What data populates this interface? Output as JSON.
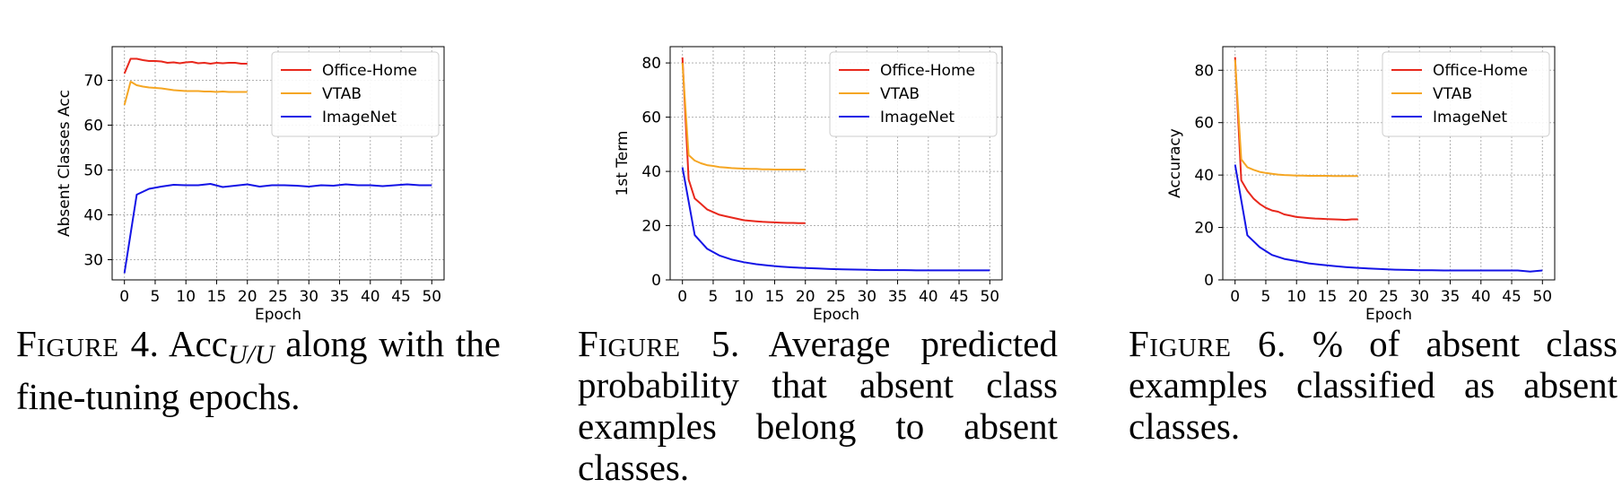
{
  "chart_data": [
    {
      "type": "line",
      "ylabel": "Absent Classes Acc",
      "xlabel": "Epoch",
      "xlim": [
        -2,
        52
      ],
      "ylim": [
        25.5,
        77.5
      ],
      "xticks": [
        "0",
        "5",
        "10",
        "15",
        "20",
        "25",
        "30",
        "35",
        "40",
        "45",
        "50"
      ],
      "yticks": [
        "30",
        "40",
        "50",
        "60",
        "70"
      ],
      "grid": true,
      "legend_position": "top-right",
      "series": [
        {
          "name": "Office-Home",
          "color": "#e8281c",
          "x": [
            0,
            1,
            2,
            3,
            4,
            5,
            6,
            7,
            8,
            9,
            10,
            11,
            12,
            13,
            14,
            15,
            16,
            17,
            18,
            19,
            20
          ],
          "y": [
            71.5,
            74.8,
            74.8,
            74.5,
            74.3,
            74.3,
            74.2,
            73.9,
            74.0,
            73.8,
            74.0,
            74.1,
            73.8,
            73.9,
            73.7,
            73.9,
            73.8,
            73.9,
            73.9,
            73.7,
            73.7
          ]
        },
        {
          "name": "VTAB",
          "color": "#f5a623",
          "x": [
            0,
            1,
            2,
            3,
            4,
            5,
            6,
            7,
            8,
            9,
            10,
            11,
            12,
            13,
            14,
            15,
            16,
            17,
            18,
            19,
            20
          ],
          "y": [
            64.5,
            69.7,
            68.9,
            68.6,
            68.4,
            68.3,
            68.2,
            68.0,
            67.8,
            67.7,
            67.6,
            67.6,
            67.6,
            67.5,
            67.5,
            67.4,
            67.5,
            67.4,
            67.4,
            67.4,
            67.4
          ]
        },
        {
          "name": "ImageNet",
          "color": "#1414e6",
          "x": [
            0,
            2,
            4,
            6,
            8,
            10,
            12,
            14,
            16,
            18,
            20,
            22,
            24,
            26,
            28,
            30,
            32,
            34,
            36,
            38,
            40,
            42,
            44,
            46,
            48,
            50
          ],
          "y": [
            27.0,
            44.5,
            45.8,
            46.3,
            46.7,
            46.6,
            46.6,
            46.9,
            46.2,
            46.5,
            46.8,
            46.3,
            46.6,
            46.6,
            46.5,
            46.3,
            46.6,
            46.5,
            46.8,
            46.6,
            46.6,
            46.4,
            46.6,
            46.8,
            46.6,
            46.6
          ]
        }
      ]
    },
    {
      "type": "line",
      "ylabel": "1st Term",
      "xlabel": "Epoch",
      "xlim": [
        -2,
        52
      ],
      "ylim": [
        0,
        86
      ],
      "xticks": [
        "0",
        "5",
        "10",
        "15",
        "20",
        "25",
        "30",
        "35",
        "40",
        "45",
        "50"
      ],
      "yticks": [
        "0",
        "20",
        "40",
        "60",
        "80"
      ],
      "grid": true,
      "legend_position": "top-right",
      "series": [
        {
          "name": "Office-Home",
          "color": "#e8281c",
          "x": [
            0,
            1,
            2,
            3,
            4,
            5,
            6,
            7,
            8,
            9,
            10,
            11,
            12,
            13,
            14,
            15,
            16,
            17,
            18,
            19,
            20
          ],
          "y": [
            82,
            37,
            30,
            28,
            26,
            25,
            24,
            23.5,
            23,
            22.5,
            22,
            21.8,
            21.6,
            21.4,
            21.3,
            21.2,
            21.1,
            21.0,
            21.0,
            20.9,
            20.9
          ]
        },
        {
          "name": "VTAB",
          "color": "#f5a623",
          "x": [
            0,
            1,
            2,
            3,
            4,
            5,
            6,
            7,
            8,
            9,
            10,
            11,
            12,
            13,
            14,
            15,
            16,
            17,
            18,
            19,
            20
          ],
          "y": [
            80,
            46,
            44,
            43,
            42.3,
            42,
            41.6,
            41.4,
            41.2,
            41.1,
            41.0,
            40.9,
            40.9,
            40.8,
            40.8,
            40.7,
            40.7,
            40.7,
            40.7,
            40.7,
            40.7
          ]
        },
        {
          "name": "ImageNet",
          "color": "#1414e6",
          "x": [
            0,
            2,
            4,
            6,
            8,
            10,
            12,
            14,
            16,
            18,
            20,
            22,
            24,
            26,
            28,
            30,
            32,
            34,
            36,
            38,
            40,
            42,
            44,
            46,
            48,
            50
          ],
          "y": [
            41.5,
            16.5,
            11.5,
            9.0,
            7.5,
            6.5,
            5.8,
            5.3,
            4.9,
            4.6,
            4.4,
            4.2,
            4.0,
            3.9,
            3.8,
            3.7,
            3.6,
            3.6,
            3.6,
            3.5,
            3.5,
            3.5,
            3.5,
            3.5,
            3.5,
            3.5
          ]
        }
      ]
    },
    {
      "type": "line",
      "ylabel": "Accuracy",
      "xlabel": "Epoch",
      "xlim": [
        -2,
        52
      ],
      "ylim": [
        0,
        89
      ],
      "xticks": [
        "0",
        "5",
        "10",
        "15",
        "20",
        "25",
        "30",
        "35",
        "40",
        "45",
        "50"
      ],
      "yticks": [
        "0",
        "20",
        "40",
        "60",
        "80"
      ],
      "grid": true,
      "legend_position": "top-right",
      "series": [
        {
          "name": "Office-Home",
          "color": "#e8281c",
          "x": [
            0,
            1,
            2,
            3,
            4,
            5,
            6,
            7,
            8,
            9,
            10,
            11,
            12,
            13,
            14,
            15,
            16,
            17,
            18,
            19,
            20
          ],
          "y": [
            85,
            38,
            34,
            31,
            29,
            27.5,
            26.5,
            26,
            25,
            24.5,
            24,
            23.8,
            23.6,
            23.4,
            23.3,
            23.2,
            23.1,
            23.0,
            22.9,
            23.1,
            23.1
          ]
        },
        {
          "name": "VTAB",
          "color": "#f5a623",
          "x": [
            0,
            1,
            2,
            3,
            4,
            5,
            6,
            7,
            8,
            9,
            10,
            11,
            12,
            13,
            14,
            15,
            16,
            17,
            18,
            19,
            20
          ],
          "y": [
            84,
            46,
            43,
            42,
            41.2,
            40.8,
            40.5,
            40.2,
            40.0,
            39.9,
            39.8,
            39.8,
            39.7,
            39.7,
            39.7,
            39.7,
            39.6,
            39.6,
            39.6,
            39.6,
            39.6
          ]
        },
        {
          "name": "ImageNet",
          "color": "#1414e6",
          "x": [
            0,
            2,
            4,
            6,
            8,
            10,
            12,
            14,
            16,
            18,
            20,
            22,
            24,
            26,
            28,
            30,
            32,
            34,
            36,
            38,
            40,
            42,
            44,
            46,
            48,
            50
          ],
          "y": [
            44,
            17,
            12.5,
            9.5,
            8,
            7.2,
            6.3,
            5.8,
            5.3,
            4.9,
            4.6,
            4.3,
            4.1,
            3.9,
            3.8,
            3.7,
            3.7,
            3.6,
            3.6,
            3.6,
            3.6,
            3.6,
            3.6,
            3.6,
            3.2,
            3.6
          ]
        }
      ]
    }
  ],
  "captions": [
    {
      "label": "Figure 4.",
      "pre": "Acc",
      "sub": "U/U",
      "post": " along with the fine-tuning epochs."
    },
    {
      "label": "Figure 5.",
      "text": "Average predicted probability that absent class examples belong to absent classes."
    },
    {
      "label": "Figure 6.",
      "text": "% of absent class examples classified as absent classes."
    }
  ]
}
